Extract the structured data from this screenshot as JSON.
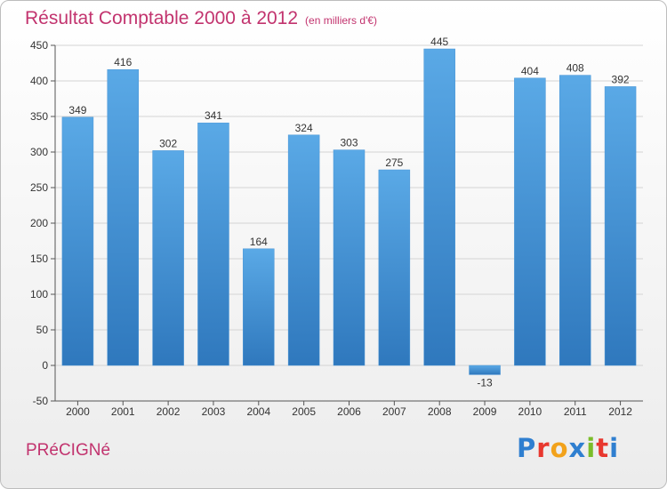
{
  "header": {
    "title": "Résultat Comptable 2000 à 2012",
    "subtitle": "(en milliers d'€)"
  },
  "footer": {
    "town": "PRéCIGNé",
    "brand": "Proxiti",
    "brand_letters": [
      "P",
      "r",
      "o",
      "x",
      "i",
      "t",
      "i"
    ],
    "brand_colors": [
      "#2f7fd0",
      "#e8382f",
      "#f2a21b",
      "#2f7fd0",
      "#7bbd2a",
      "#e8382f",
      "#2f7fd0"
    ]
  },
  "colors": {
    "title": "#c2336e",
    "bar_top": "#5aa9e6",
    "bar_bottom": "#2f78bd",
    "grid": "#d4d4d4"
  },
  "chart_data": {
    "type": "bar",
    "title": "Résultat Comptable 2000 à 2012",
    "ylabel": "en milliers d'€",
    "xlabel": "",
    "categories": [
      "2000",
      "2001",
      "2002",
      "2003",
      "2004",
      "2005",
      "2006",
      "2007",
      "2008",
      "2009",
      "2010",
      "2011",
      "2012"
    ],
    "values": [
      349,
      416,
      302,
      341,
      164,
      324,
      303,
      275,
      445,
      -13,
      404,
      408,
      392
    ],
    "value_labels": [
      "349",
      "416",
      "302",
      "341",
      "164",
      "324",
      "303",
      "275",
      "445",
      "-13",
      "404",
      "408",
      "392"
    ],
    "ylim": [
      -50,
      450
    ],
    "yticks": [
      -50,
      0,
      50,
      100,
      150,
      200,
      250,
      300,
      350,
      400,
      450
    ],
    "ytick_labels": [
      "-50",
      "0",
      "50",
      "100",
      "150",
      "200",
      "250",
      "300",
      "350",
      "400",
      "450"
    ],
    "grid": true,
    "legend": "none"
  }
}
